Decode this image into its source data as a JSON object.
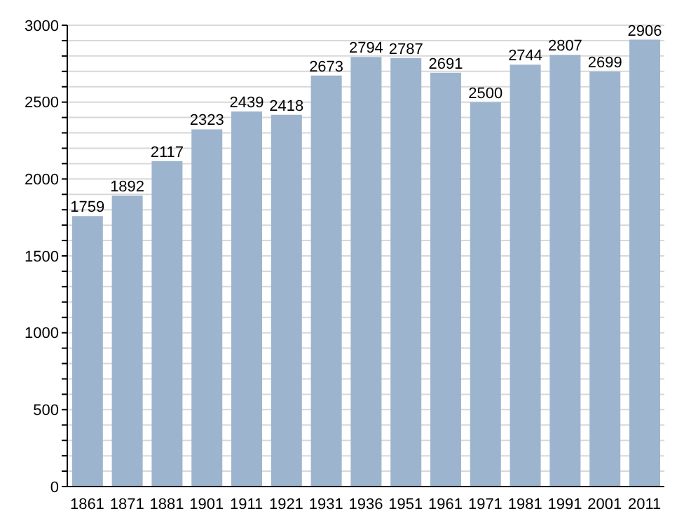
{
  "chart_data": {
    "type": "bar",
    "categories": [
      "1861",
      "1871",
      "1881",
      "1901",
      "1911",
      "1921",
      "1931",
      "1936",
      "1951",
      "1961",
      "1971",
      "1981",
      "1991",
      "2001",
      "2011"
    ],
    "values": [
      1759,
      1892,
      2117,
      2323,
      2439,
      2418,
      2673,
      2794,
      2787,
      2691,
      2500,
      2744,
      2807,
      2699,
      2906
    ],
    "color": "#9db4cf",
    "data_labels": true,
    "grid": "y",
    "ylim": [
      0,
      3000
    ],
    "yticks": [
      0,
      {
        "value": 100,
        "label": null
      },
      {
        "value": 200,
        "label": null
      },
      {
        "value": 300,
        "label": null
      },
      {
        "value": 400,
        "label": null
      },
      500,
      {
        "value": 600,
        "label": null
      },
      {
        "value": 700,
        "label": null
      },
      {
        "value": 800,
        "label": null
      },
      {
        "value": 900,
        "label": null
      },
      1000,
      {
        "value": 1100,
        "label": null
      },
      {
        "value": 1200,
        "label": null
      },
      {
        "value": 1300,
        "label": null
      },
      {
        "value": 1400,
        "label": null
      },
      1500,
      {
        "value": 1600,
        "label": null
      },
      {
        "value": 1700,
        "label": null
      },
      {
        "value": 1800,
        "label": null
      },
      {
        "value": 1900,
        "label": null
      },
      2000,
      {
        "value": 2100,
        "label": null
      },
      {
        "value": 2200,
        "label": null
      },
      {
        "value": 2300,
        "label": null
      },
      {
        "value": 2400,
        "label": null
      },
      2500,
      {
        "value": 2600,
        "label": null
      },
      {
        "value": 2700,
        "label": null
      },
      {
        "value": 2800,
        "label": null
      },
      {
        "value": 2900,
        "label": null
      },
      3000
    ]
  }
}
